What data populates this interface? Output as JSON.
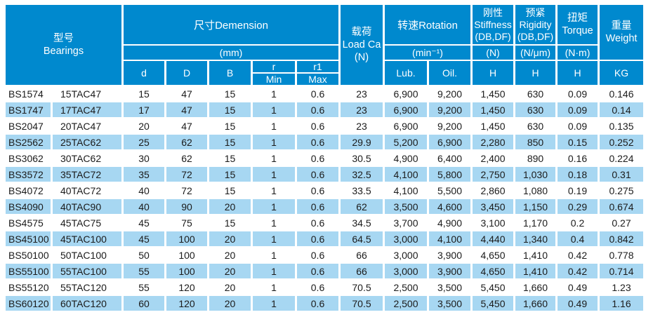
{
  "table": {
    "header": {
      "model_zh": "型号",
      "model_en": "Bearings",
      "dimension": "尺寸Demension",
      "dimension_unit": "(mm)",
      "load_zh": "载荷",
      "load_en": "Load Ca",
      "load_unit": "(N)",
      "rotation": "转速Rotation",
      "rotation_unit": "(min⁻¹)",
      "stiffness_zh": "刚性",
      "stiffness_en": "Stiffness",
      "stiffness_note": "(DB,DF)",
      "stiffness_unit": "(N)",
      "rigidity_zh": "预紧",
      "rigidity_en": "Rigidity",
      "rigidity_note": "(DB,DF)",
      "rigidity_unit": "(N/μm)",
      "torque_zh": "扭矩",
      "torque_en": "Torque",
      "torque_unit": "(N·m)",
      "weight_zh": "重量",
      "weight_en": "Weight",
      "col_d": "d",
      "col_D": "D",
      "col_B": "B",
      "col_r": "r",
      "col_r_min": "Min",
      "col_r1": "r1",
      "col_r1_max": "Max",
      "col_lub": "Lub.",
      "col_oil": "Oil.",
      "col_h_stiffness": "H",
      "col_h_rigidity": "H",
      "col_h_torque": "H",
      "col_kg": "KG"
    },
    "column_names": [
      "cell-model-bs",
      "cell-model-tac",
      "cell-dim-d",
      "cell-dim-D",
      "cell-dim-B",
      "cell-r-min",
      "cell-r1-max",
      "cell-load-ca",
      "cell-rotation-lub",
      "cell-rotation-oil",
      "cell-stiffness-h",
      "cell-rigidity-h",
      "cell-torque-h",
      "cell-weight-kg"
    ],
    "rows": [
      [
        "BS1574",
        "15TAC47",
        "15",
        "47",
        "15",
        "1",
        "0.6",
        "23",
        "6,900",
        "9,200",
        "1,450",
        "630",
        "0.09",
        "0.146"
      ],
      [
        "BS1747",
        "17TAC47",
        "17",
        "47",
        "15",
        "1",
        "0.6",
        "23",
        "6,900",
        "9,200",
        "1,450",
        "630",
        "0.09",
        "0.14"
      ],
      [
        "BS2047",
        "20TAC47",
        "20",
        "47",
        "15",
        "1",
        "0.6",
        "23",
        "6,900",
        "9,200",
        "1,450",
        "630",
        "0.09",
        "0.135"
      ],
      [
        "BS2562",
        "25TAC62",
        "25",
        "62",
        "15",
        "1",
        "0.6",
        "29.9",
        "5,200",
        "6,900",
        "2,280",
        "850",
        "0.15",
        "0.252"
      ],
      [
        "BS3062",
        "30TAC62",
        "30",
        "62",
        "15",
        "1",
        "0.6",
        "30.5",
        "4,900",
        "6,400",
        "2,400",
        "890",
        "0.16",
        "0.224"
      ],
      [
        "BS3572",
        "35TAC72",
        "35",
        "72",
        "15",
        "1",
        "0.6",
        "32.5",
        "4,100",
        "5,800",
        "2,750",
        "1,030",
        "0.18",
        "0.31"
      ],
      [
        "BS4072",
        "40TAC72",
        "40",
        "72",
        "15",
        "1",
        "0.6",
        "33.5",
        "4,100",
        "5,500",
        "2,860",
        "1,080",
        "0.19",
        "0.275"
      ],
      [
        "BS4090",
        "40TAC90",
        "40",
        "90",
        "20",
        "1",
        "0.6",
        "62",
        "3,500",
        "4,600",
        "3,450",
        "1,150",
        "0.29",
        "0.674"
      ],
      [
        "BS4575",
        "45TAC75",
        "45",
        "75",
        "15",
        "1",
        "0.6",
        "34.5",
        "3,700",
        "4,900",
        "3,100",
        "1,170",
        "0.2",
        "0.27"
      ],
      [
        "BS45100",
        "45TAC100",
        "45",
        "100",
        "20",
        "1",
        "0.6",
        "64.5",
        "3,000",
        "4,100",
        "4,440",
        "1,340",
        "0.4",
        "0.842"
      ],
      [
        "BS50100",
        "50TAC100",
        "50",
        "100",
        "20",
        "1",
        "0.6",
        "66",
        "3,000",
        "3,900",
        "4,650",
        "1,410",
        "0.42",
        "0.778"
      ],
      [
        "BS55100",
        "55TAC100",
        "55",
        "100",
        "20",
        "1",
        "0.6",
        "66",
        "3,000",
        "3,900",
        "4,650",
        "1,410",
        "0.42",
        "0.714"
      ],
      [
        "BS55120",
        "55TAC120",
        "55",
        "120",
        "20",
        "1",
        "0.6",
        "70.5",
        "2,500",
        "3,500",
        "5,450",
        "1,660",
        "0.49",
        "1.23"
      ],
      [
        "BS60120",
        "60TAC120",
        "60",
        "120",
        "20",
        "1",
        "0.6",
        "70.5",
        "2,500",
        "3,500",
        "5,450",
        "1,660",
        "0.49",
        "1.16"
      ]
    ],
    "colors": {
      "header_bg": "#0089ce",
      "stripe_bg": "#a7d7f2",
      "text": "#1b1b1b",
      "header_text": "#ffffff"
    }
  }
}
